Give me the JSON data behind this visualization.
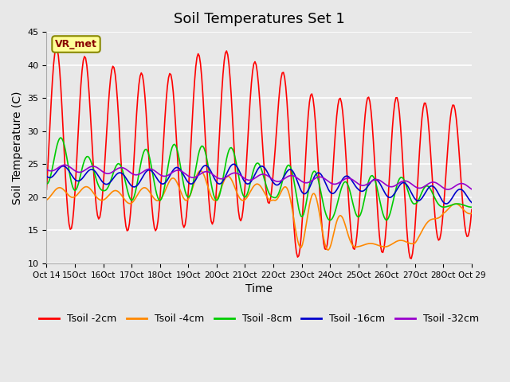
{
  "title": "Soil Temperatures Set 1",
  "xlabel": "Time",
  "ylabel": "Soil Temperature (C)",
  "ylim": [
    10,
    45
  ],
  "yticks": [
    10,
    15,
    20,
    25,
    30,
    35,
    40,
    45
  ],
  "background_color": "#e8e8e8",
  "series_colors": [
    "#ff0000",
    "#ff8800",
    "#00cc00",
    "#0000cc",
    "#9900cc"
  ],
  "series_labels": [
    "Tsoil -2cm",
    "Tsoil -4cm",
    "Tsoil -8cm",
    "Tsoil -16cm",
    "Tsoil -32cm"
  ],
  "annotation_text": "VR_met",
  "annotation_bg": "#ffff99",
  "annotation_border": "#888800",
  "x_tick_labels": [
    "Oct 14",
    "15Oct",
    "16Oct",
    "17Oct",
    "18Oct",
    "19Oct",
    "20Oct",
    "21Oct",
    "22Oct",
    "23Oct",
    "24Oct",
    "25Oct",
    "26Oct",
    "27Oct",
    "28Oct",
    "Oct 29"
  ],
  "x_tick_positions": [
    0,
    1,
    2,
    3,
    4,
    5,
    6,
    7,
    8,
    9,
    10,
    11,
    12,
    13,
    14,
    15
  ],
  "n_days": 15,
  "title_fontsize": 13,
  "axis_fontsize": 10,
  "legend_fontsize": 9
}
